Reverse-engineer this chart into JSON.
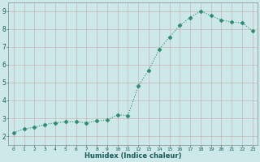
{
  "x": [
    0,
    1,
    2,
    3,
    4,
    5,
    6,
    7,
    8,
    9,
    10,
    11,
    12,
    13,
    14,
    15,
    16,
    17,
    18,
    19,
    20,
    21,
    22,
    23
  ],
  "y": [
    2.2,
    2.4,
    2.5,
    2.65,
    2.75,
    2.8,
    2.8,
    2.75,
    2.85,
    2.9,
    3.2,
    3.15,
    4.8,
    5.7,
    6.85,
    7.55,
    8.2,
    8.65,
    9.0,
    8.75,
    8.5,
    8.4,
    8.35,
    7.9
  ],
  "xlabel": "Humidex (Indice chaleur)",
  "ylim": [
    1.5,
    9.5
  ],
  "xlim": [
    -0.5,
    23.5
  ],
  "yticks": [
    2,
    3,
    4,
    5,
    6,
    7,
    8,
    9
  ],
  "xticks": [
    0,
    1,
    2,
    3,
    4,
    5,
    6,
    7,
    8,
    9,
    10,
    11,
    12,
    13,
    14,
    15,
    16,
    17,
    18,
    19,
    20,
    21,
    22,
    23
  ],
  "line_color": "#2e8b6e",
  "bg_color": "#cde8e8",
  "grid_color": "#b8d4d4",
  "marker": "D",
  "marker_size": 2.5,
  "linewidth": 0.8
}
